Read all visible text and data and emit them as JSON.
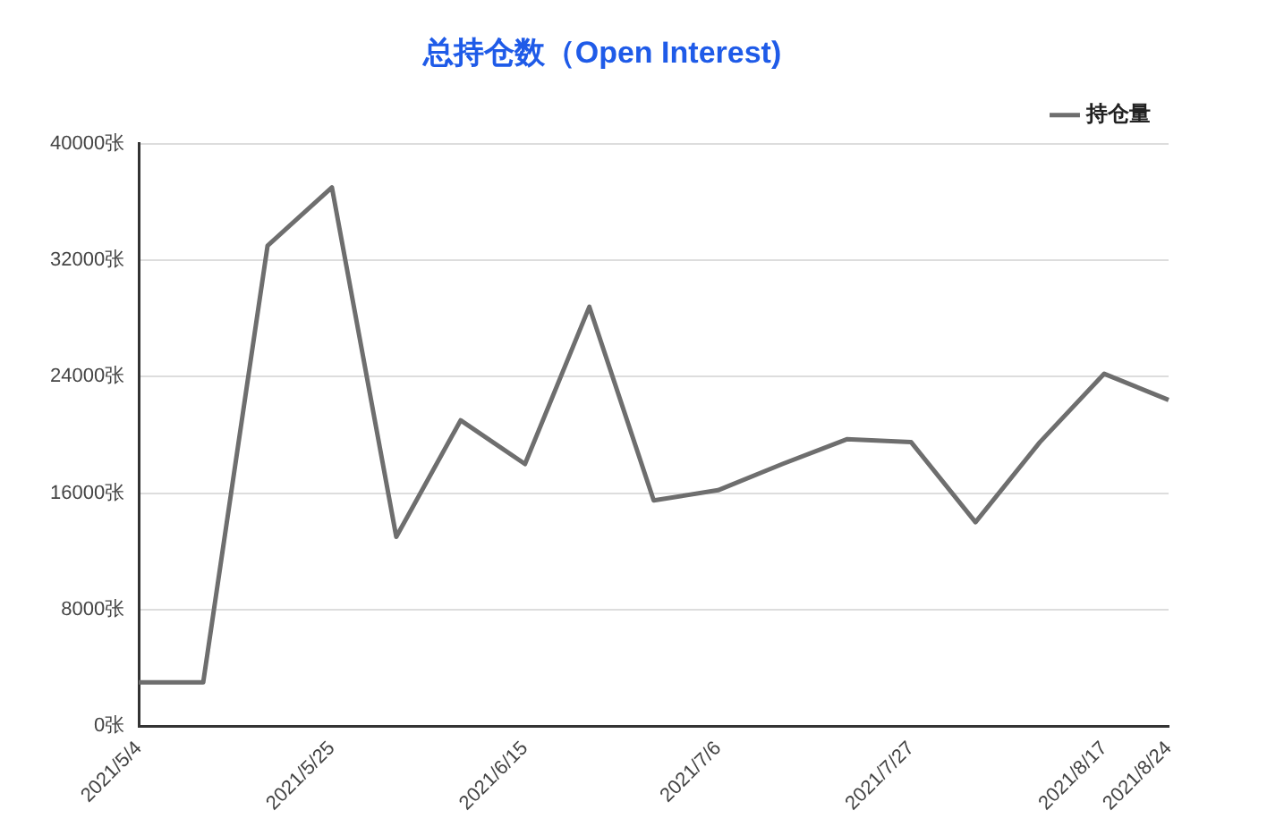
{
  "chart_data": {
    "type": "line",
    "title": "总持仓数（Open Interest)",
    "categories": [
      "2021/5/4",
      null,
      null,
      "2021/5/25",
      null,
      null,
      "2021/6/15",
      null,
      null,
      "2021/7/6",
      null,
      null,
      "2021/7/27",
      null,
      null,
      "2021/8/17",
      "2021/8/24"
    ],
    "series": [
      {
        "name": "持仓量",
        "color": "#6e6e6e",
        "values": [
          3000,
          3000,
          33000,
          37000,
          13000,
          21000,
          18000,
          28800,
          15500,
          16200,
          18000,
          19700,
          19500,
          14000,
          19500,
          24200,
          22400
        ]
      }
    ],
    "ylim": [
      0,
      40000
    ],
    "yticks": [
      {
        "value": 0,
        "label": "0张"
      },
      {
        "value": 8000,
        "label": "8000张"
      },
      {
        "value": 16000,
        "label": "16000张"
      },
      {
        "value": 24000,
        "label": "24000张"
      },
      {
        "value": 32000,
        "label": "32000张"
      },
      {
        "value": 40000,
        "label": "40000张"
      }
    ],
    "grid": "y",
    "legend": "top right",
    "marker": "none",
    "line_style": "solid"
  }
}
